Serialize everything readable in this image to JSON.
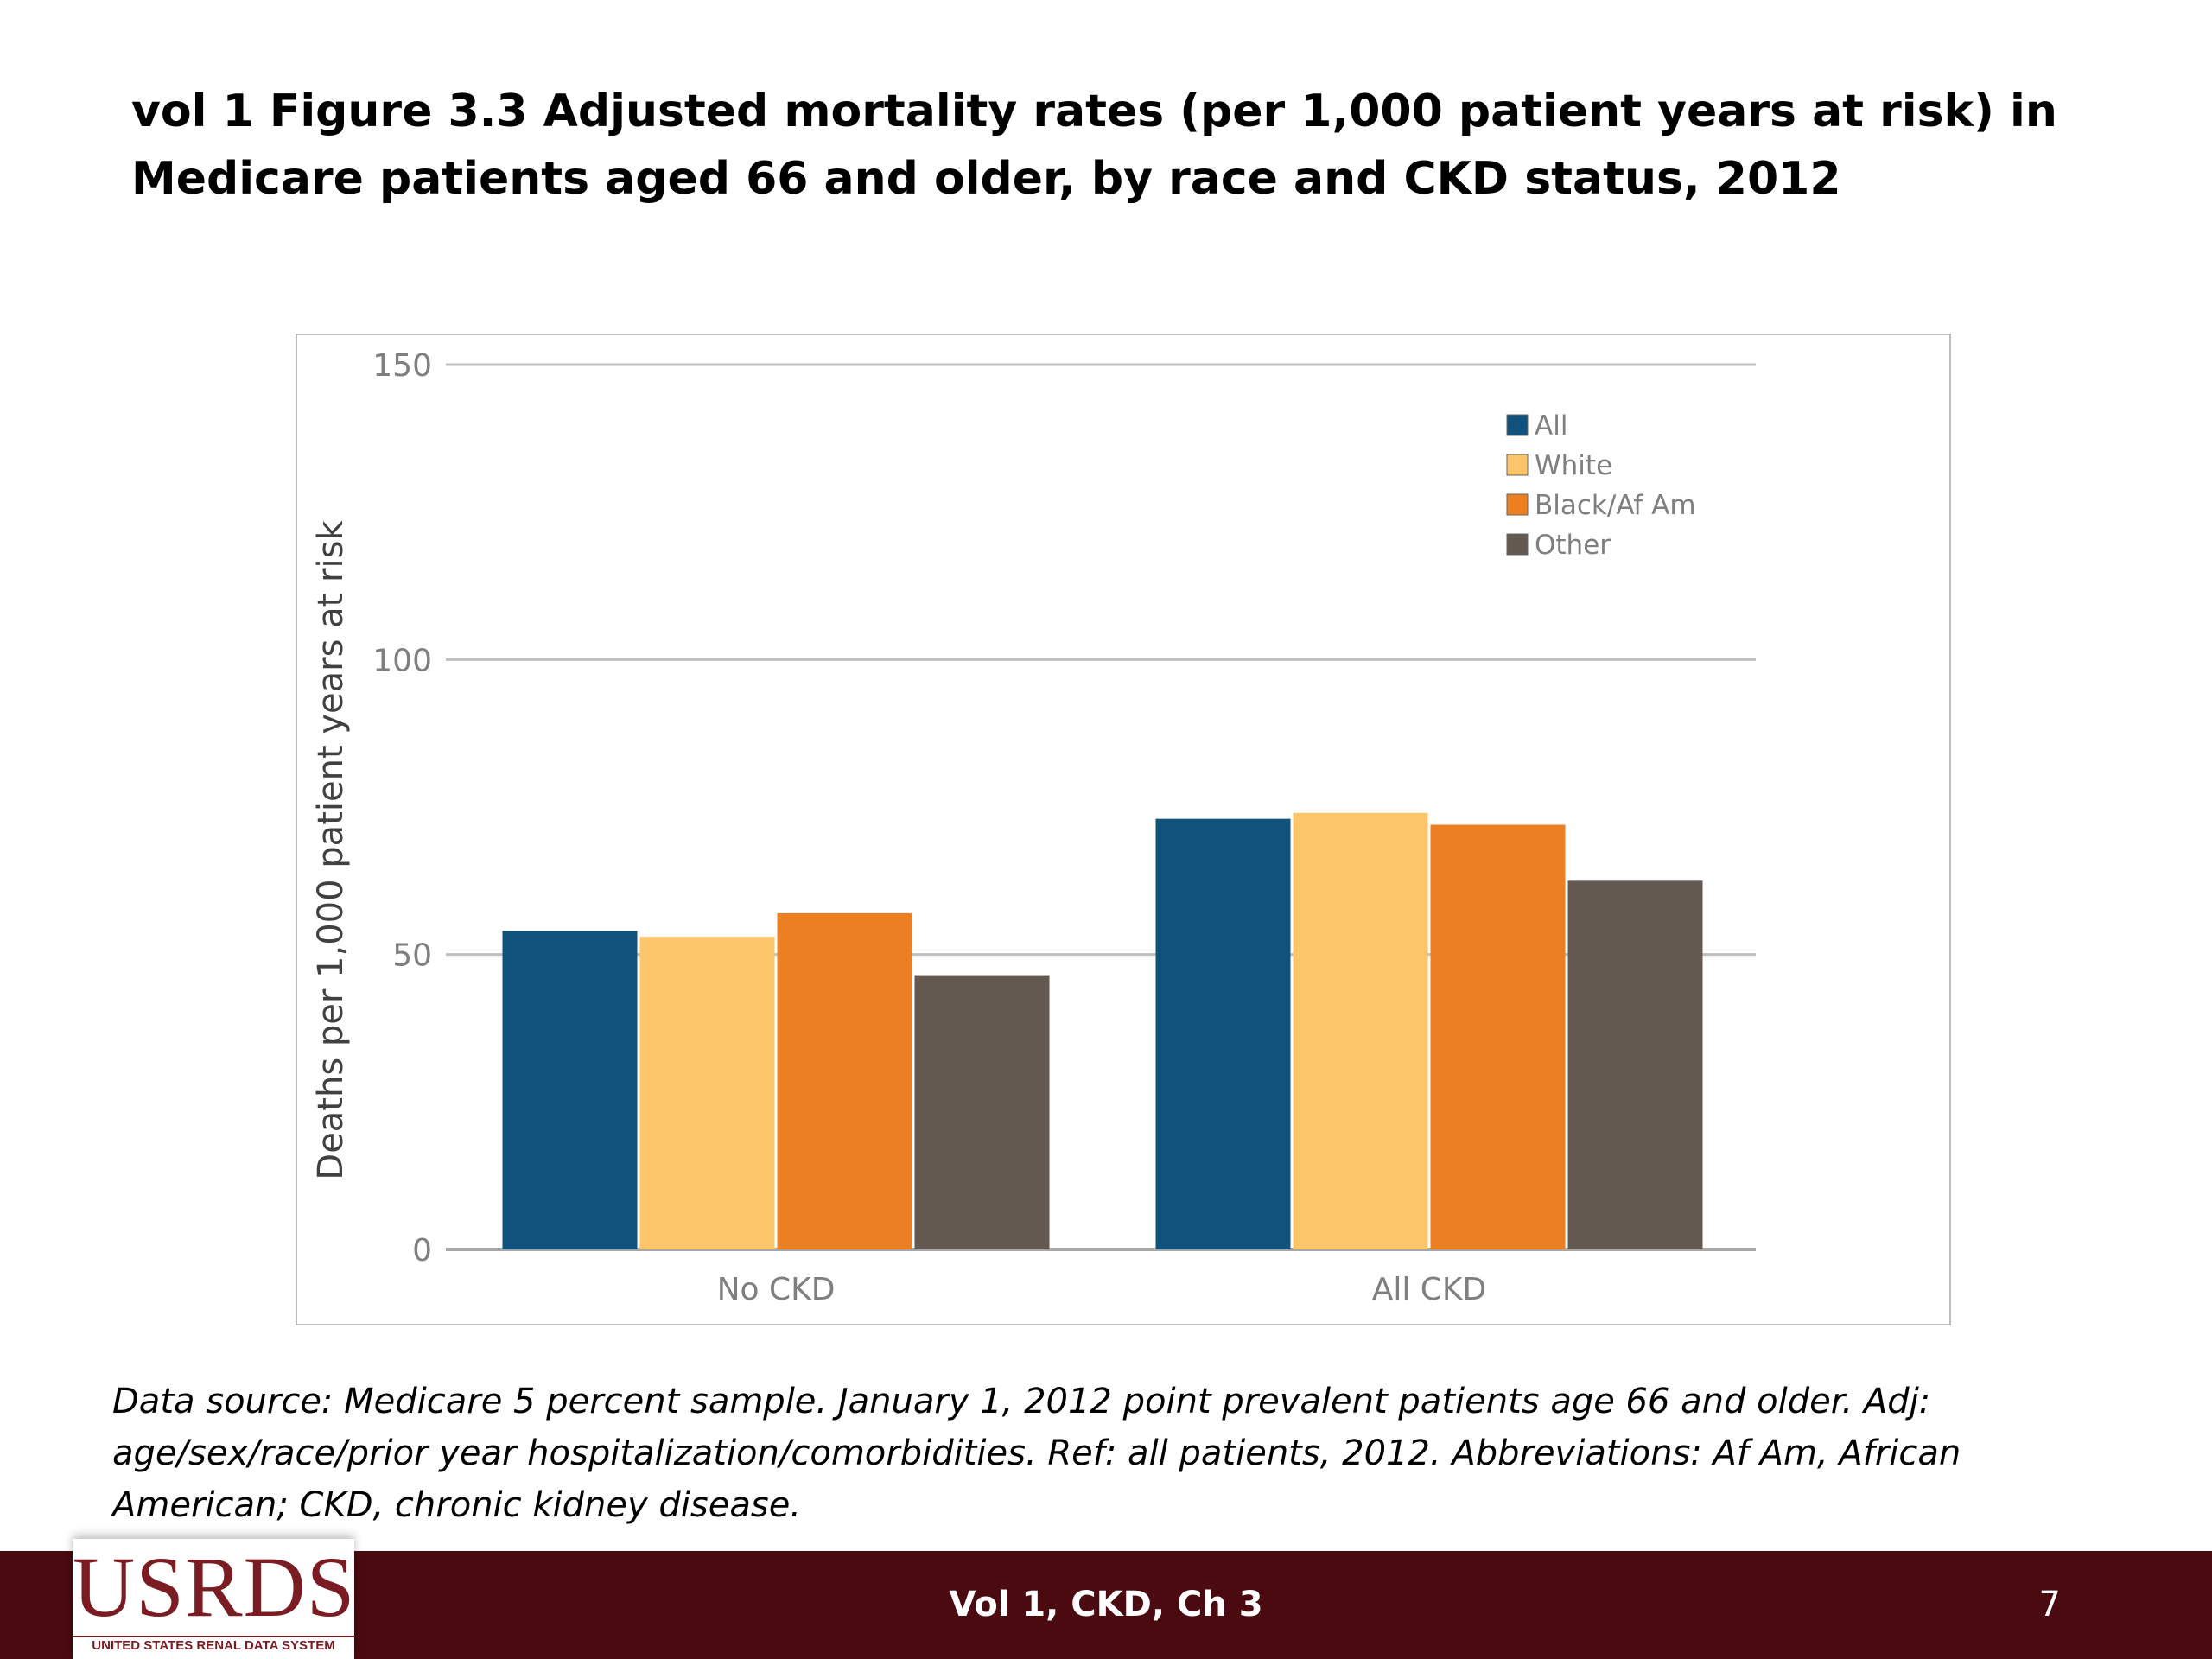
{
  "slide": {
    "title": "vol 1 Figure 3.3  Adjusted mortality rates (per 1,000 patient years at risk) in Medicare patients aged 66 and older, by race and CKD status, 2012",
    "caption": "Data source: Medicare 5 percent sample. January 1, 2012 point prevalent patients age 66 and older. Adj: age/sex/race/prior year hospitalization/comorbidities. Ref: all patients, 2012. Abbreviations: Af Am, African American; CKD, chronic kidney disease."
  },
  "chart_data": {
    "type": "bar",
    "title": "",
    "xlabel": "",
    "ylabel": "Deaths per 1,000 patient years at risk",
    "ylim": [
      0,
      150
    ],
    "yticks": [
      0,
      50,
      100,
      150
    ],
    "grid": true,
    "legend_position": "top-right",
    "categories": [
      "No CKD",
      "All CKD"
    ],
    "series": [
      {
        "name": "All",
        "color": "#11527c",
        "values": [
          54,
          73
        ]
      },
      {
        "name": "White",
        "color": "#fdc56a",
        "values": [
          53,
          74
        ]
      },
      {
        "name": "Black/Af Am",
        "color": "#ec7f22",
        "values": [
          57,
          72
        ]
      },
      {
        "name": "Other",
        "color": "#635950",
        "values": [
          46.5,
          62.5
        ]
      }
    ]
  },
  "footer": {
    "logo_text": "USRDS",
    "logo_subtext": "UNITED STATES RENAL DATA SYSTEM",
    "center_text": "Vol 1, CKD, Ch 3",
    "page_number": "7",
    "background_color": "#4a0a10"
  }
}
